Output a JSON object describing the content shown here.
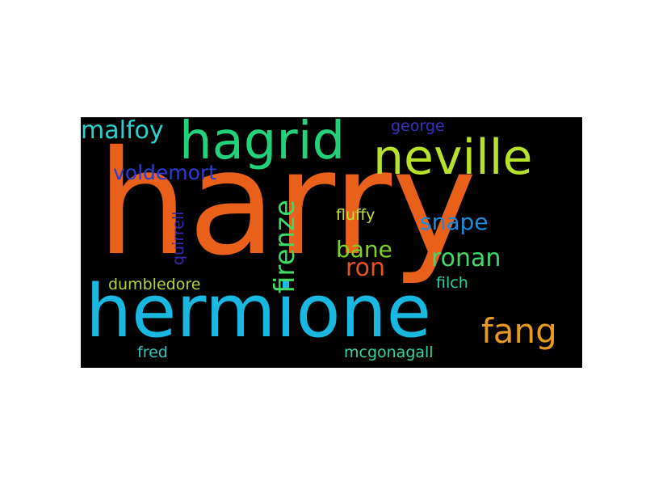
{
  "words": [
    {
      "id": "harry",
      "text": "harry",
      "color": "#e8601a"
    },
    {
      "id": "hermione",
      "text": "hermione",
      "color": "#19b8e0"
    },
    {
      "id": "hagrid",
      "text": "hagrid",
      "color": "#22d27a"
    },
    {
      "id": "neville",
      "text": "neville",
      "color": "#b6e22a"
    },
    {
      "id": "malfoy",
      "text": "malfoy",
      "color": "#2ad1cf"
    },
    {
      "id": "fang",
      "text": "fang",
      "color": "#e69a1e"
    },
    {
      "id": "voldemort",
      "text": "voldemort",
      "color": "#2a3dcf"
    },
    {
      "id": "george",
      "text": "george",
      "color": "#3430c2"
    },
    {
      "id": "firenze",
      "text": "firenze",
      "color": "#3edc63"
    },
    {
      "id": "snape",
      "text": "snape",
      "color": "#1c8cd6"
    },
    {
      "id": "bane",
      "text": "bane",
      "color": "#7ed321"
    },
    {
      "id": "ron",
      "text": "ron",
      "color": "#e8531a"
    },
    {
      "id": "ronan",
      "text": "ronan",
      "color": "#3ed96a"
    },
    {
      "id": "fluffy",
      "text": "fluffy",
      "color": "#c4e23a"
    },
    {
      "id": "quirrell",
      "text": "quirrell",
      "color": "#3528b5"
    },
    {
      "id": "dumbledore",
      "text": "dumbledore",
      "color": "#b2d63a"
    },
    {
      "id": "filch",
      "text": "filch",
      "color": "#2ad1a8"
    },
    {
      "id": "fred",
      "text": "fred",
      "color": "#2ac9c0"
    },
    {
      "id": "mcgonagall",
      "text": "mcgonagall",
      "color": "#35d6a6"
    }
  ]
}
